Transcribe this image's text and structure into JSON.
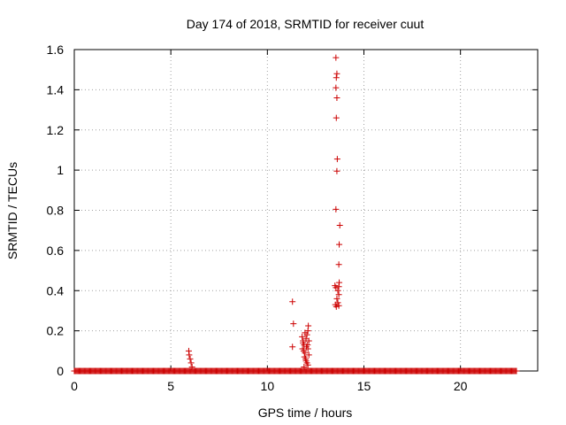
{
  "chart_data": {
    "type": "scatter",
    "title": "Day 174 of 2018, SRMTID for receiver cuut",
    "xlabel": "GPS time / hours",
    "ylabel": "SRMTID / TECUs",
    "xlim": [
      0,
      24
    ],
    "ylim": [
      0,
      1.6
    ],
    "xticks": [
      0,
      5,
      10,
      15,
      20
    ],
    "yticks": [
      0,
      0.2,
      0.4,
      0.6,
      0.8,
      1,
      1.2,
      1.4,
      1.6
    ],
    "xtick_labels": [
      "0",
      "5",
      "10",
      "15",
      "20"
    ],
    "ytick_labels": [
      "0",
      "0.2",
      "0.4",
      "0.6",
      "0.8",
      "1",
      "1.2",
      "1.4",
      "1.6"
    ],
    "grid": true,
    "marker": "+",
    "color": "#cc0000",
    "baseline": {
      "x_start": 0.0,
      "x_end": 22.9,
      "step": 0.05,
      "y": 0.0
    },
    "points": [
      {
        "x": 5.93,
        "y": 0.1
      },
      {
        "x": 5.95,
        "y": 0.08
      },
      {
        "x": 6.0,
        "y": 0.06
      },
      {
        "x": 6.05,
        "y": 0.04
      },
      {
        "x": 6.1,
        "y": 0.02
      },
      {
        "x": 11.3,
        "y": 0.345
      },
      {
        "x": 11.35,
        "y": 0.235
      },
      {
        "x": 11.3,
        "y": 0.12
      },
      {
        "x": 11.8,
        "y": 0.17
      },
      {
        "x": 11.85,
        "y": 0.15
      },
      {
        "x": 11.9,
        "y": 0.13
      },
      {
        "x": 11.82,
        "y": 0.11
      },
      {
        "x": 11.88,
        "y": 0.1
      },
      {
        "x": 11.95,
        "y": 0.09
      },
      {
        "x": 11.92,
        "y": 0.07
      },
      {
        "x": 11.98,
        "y": 0.06
      },
      {
        "x": 12.0,
        "y": 0.05
      },
      {
        "x": 12.05,
        "y": 0.04
      },
      {
        "x": 12.1,
        "y": 0.03
      },
      {
        "x": 11.9,
        "y": 0.02
      },
      {
        "x": 12.0,
        "y": 0.16
      },
      {
        "x": 12.05,
        "y": 0.18
      },
      {
        "x": 12.1,
        "y": 0.2
      },
      {
        "x": 12.12,
        "y": 0.225
      },
      {
        "x": 12.15,
        "y": 0.15
      },
      {
        "x": 12.08,
        "y": 0.13
      },
      {
        "x": 12.02,
        "y": 0.12
      },
      {
        "x": 12.1,
        "y": 0.11
      },
      {
        "x": 12.15,
        "y": 0.08
      },
      {
        "x": 11.85,
        "y": 0.14
      },
      {
        "x": 11.95,
        "y": 0.19
      },
      {
        "x": 13.55,
        "y": 1.56
      },
      {
        "x": 13.6,
        "y": 1.48
      },
      {
        "x": 13.57,
        "y": 1.46
      },
      {
        "x": 13.55,
        "y": 1.41
      },
      {
        "x": 13.6,
        "y": 1.36
      },
      {
        "x": 13.57,
        "y": 1.26
      },
      {
        "x": 13.62,
        "y": 1.055
      },
      {
        "x": 13.6,
        "y": 0.995
      },
      {
        "x": 13.55,
        "y": 0.805
      },
      {
        "x": 13.75,
        "y": 0.725
      },
      {
        "x": 13.72,
        "y": 0.63
      },
      {
        "x": 13.7,
        "y": 0.53
      },
      {
        "x": 13.5,
        "y": 0.425
      },
      {
        "x": 13.55,
        "y": 0.415
      },
      {
        "x": 13.72,
        "y": 0.44
      },
      {
        "x": 13.7,
        "y": 0.42
      },
      {
        "x": 13.65,
        "y": 0.4
      },
      {
        "x": 13.7,
        "y": 0.38
      },
      {
        "x": 13.6,
        "y": 0.36
      },
      {
        "x": 13.52,
        "y": 0.33
      },
      {
        "x": 13.57,
        "y": 0.32
      },
      {
        "x": 13.65,
        "y": 0.34
      },
      {
        "x": 13.7,
        "y": 0.325
      }
    ]
  }
}
